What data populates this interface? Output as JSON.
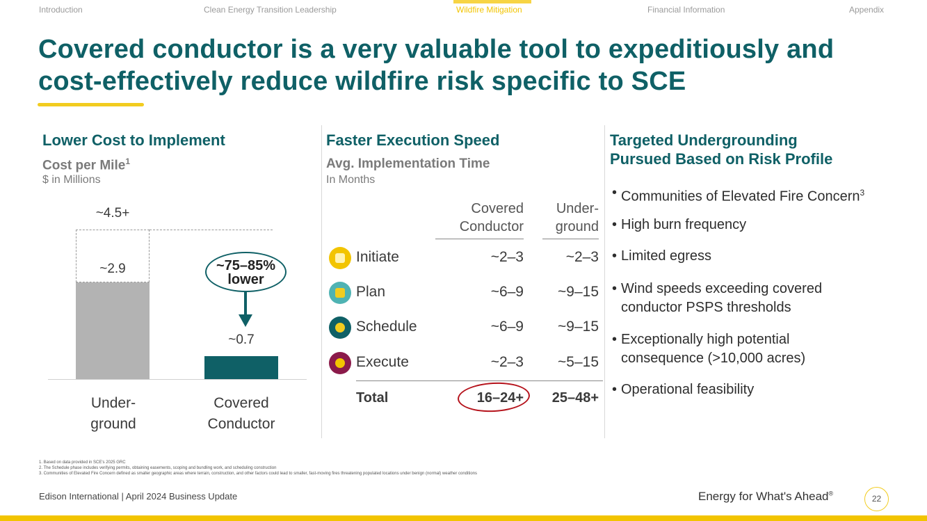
{
  "nav": {
    "items": [
      "Introduction",
      "Clean Energy Transition Leadership",
      "Wildfire Mitigation",
      "Financial Information",
      "Appendix"
    ],
    "active_index": 2
  },
  "title": {
    "line1": "Covered conductor is a very valuable tool to expeditiously and",
    "line2": "cost-effectively reduce wildfire risk specific to SCE"
  },
  "left": {
    "heading": "Lower Cost to Implement",
    "subheading": "Cost per Mile",
    "subheading_sup": "1",
    "unit": "$ in Millions",
    "chart_data": {
      "type": "bar",
      "title": "Cost per Mile",
      "ylabel": "$ in Millions",
      "categories": [
        "Underground",
        "Covered Conductor"
      ],
      "values": [
        2.9,
        0.7
      ],
      "upper_range_values": [
        4.5,
        null
      ],
      "value_labels": [
        "~2.9",
        "~0.7"
      ],
      "upper_range_labels": [
        "~4.5+",
        ""
      ],
      "ylim": [
        0,
        5
      ],
      "colors": [
        "#b3b3b3",
        "#0f6066"
      ],
      "callout_line1": "~75–85%",
      "callout_line2": "lower"
    },
    "cat_labels": [
      [
        "Under-",
        "ground"
      ],
      [
        "Covered",
        "Conductor"
      ]
    ]
  },
  "middle": {
    "heading": "Faster Execution Speed",
    "subheading": "Avg. Implementation Time",
    "unit": "In Months",
    "col_headers": [
      [
        "Covered",
        "Conductor"
      ],
      [
        "Under-",
        "ground"
      ]
    ],
    "rows": [
      {
        "name": "Initiate",
        "covered": "~2–3",
        "underground": "~2–3",
        "icon": "hand-pointer-icon",
        "color": "#f2c400"
      },
      {
        "name": "Plan",
        "covered": "~6–9",
        "underground": "~9–15",
        "icon": "blueprint-icon",
        "color": "#4fb3b3"
      },
      {
        "name": "Schedule",
        "covered": "~6–9",
        "underground": "~9–15",
        "icon": "calendar-gear-icon",
        "color": "#0f6066"
      },
      {
        "name": "Execute",
        "covered": "~2–3",
        "underground": "~5–15",
        "icon": "gear-icon",
        "color": "#8b1a4a"
      }
    ],
    "total": {
      "label": "Total",
      "covered": "16–24+",
      "underground": "25–48+"
    }
  },
  "right": {
    "heading_line1": "Targeted Undergrounding",
    "heading_line2": "Pursued Based on Risk Profile",
    "bullets": [
      {
        "text": "Communities of Elevated Fire Concern",
        "sup": "3"
      },
      {
        "text": "High burn frequency",
        "sup": ""
      },
      {
        "text": "Limited egress",
        "sup": ""
      },
      {
        "text": "Wind speeds exceeding covered conductor PSPS thresholds",
        "sup": ""
      },
      {
        "text": "Exceptionally high potential consequence (>10,000 acres)",
        "sup": ""
      },
      {
        "text": "Operational feasibility",
        "sup": ""
      }
    ]
  },
  "footnotes": [
    "1.   Based on data provided in SCE's 2025 GRC",
    "2.   The Schedule phase includes verifying permits, obtaining easements, scoping and bundling work, and scheduling construction",
    "3.   Communities of Elevated Fire Concern defined as smaller geographic areas where terrain, construction, and other factors could lead to smaller, fast-moving fires threatening populated locations under benign (normal) weather conditions"
  ],
  "footer": {
    "left": "Edison International |  April 2024 Business Update",
    "right": "Energy for What's Ahead",
    "right_sup": "®",
    "page": "22"
  }
}
